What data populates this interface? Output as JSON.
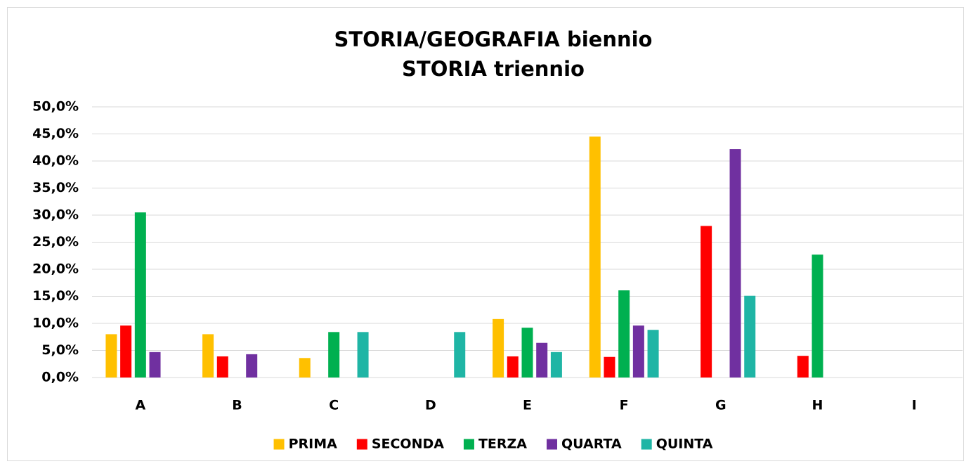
{
  "chart_data": {
    "type": "bar",
    "title": [
      "STORIA/GEOGRAFIA biennio",
      "STORIA triennio"
    ],
    "categories": [
      "A",
      "B",
      "C",
      "D",
      "E",
      "F",
      "G",
      "H",
      "I"
    ],
    "series": [
      {
        "name": "PRIMA",
        "color": "#FFC000",
        "values": [
          8.0,
          8.0,
          3.6,
          0,
          10.8,
          44.5,
          0,
          0,
          0
        ]
      },
      {
        "name": "SECONDA",
        "color": "#FF0000",
        "values": [
          9.6,
          3.9,
          0,
          0,
          3.9,
          3.8,
          28.0,
          4.0,
          0
        ]
      },
      {
        "name": "TERZA",
        "color": "#00B050",
        "values": [
          30.5,
          0,
          8.4,
          0,
          9.2,
          16.1,
          0,
          22.7,
          0
        ]
      },
      {
        "name": "QUARTA",
        "color": "#7030A0",
        "values": [
          4.7,
          4.3,
          0,
          0,
          6.4,
          9.6,
          42.2,
          0,
          0
        ]
      },
      {
        "name": "QUINTA",
        "color": "#1FB5A5",
        "values": [
          0,
          0,
          8.4,
          8.4,
          4.7,
          8.8,
          15.1,
          0,
          0
        ]
      }
    ],
    "ylim": [
      0,
      50
    ],
    "yticks": [
      {
        "value": 0,
        "label": "0,0%"
      },
      {
        "value": 5,
        "label": "5,0%"
      },
      {
        "value": 10,
        "label": "10,0%"
      },
      {
        "value": 15,
        "label": "15,0%"
      },
      {
        "value": 20,
        "label": "20,0%"
      },
      {
        "value": 25,
        "label": "25,0%"
      },
      {
        "value": 30,
        "label": "30,0%"
      },
      {
        "value": 35,
        "label": "35,0%"
      },
      {
        "value": 40,
        "label": "40,0%"
      },
      {
        "value": 45,
        "label": "45,0%"
      },
      {
        "value": 50,
        "label": "50,0%"
      }
    ],
    "grid": true,
    "legend": "bottom"
  }
}
